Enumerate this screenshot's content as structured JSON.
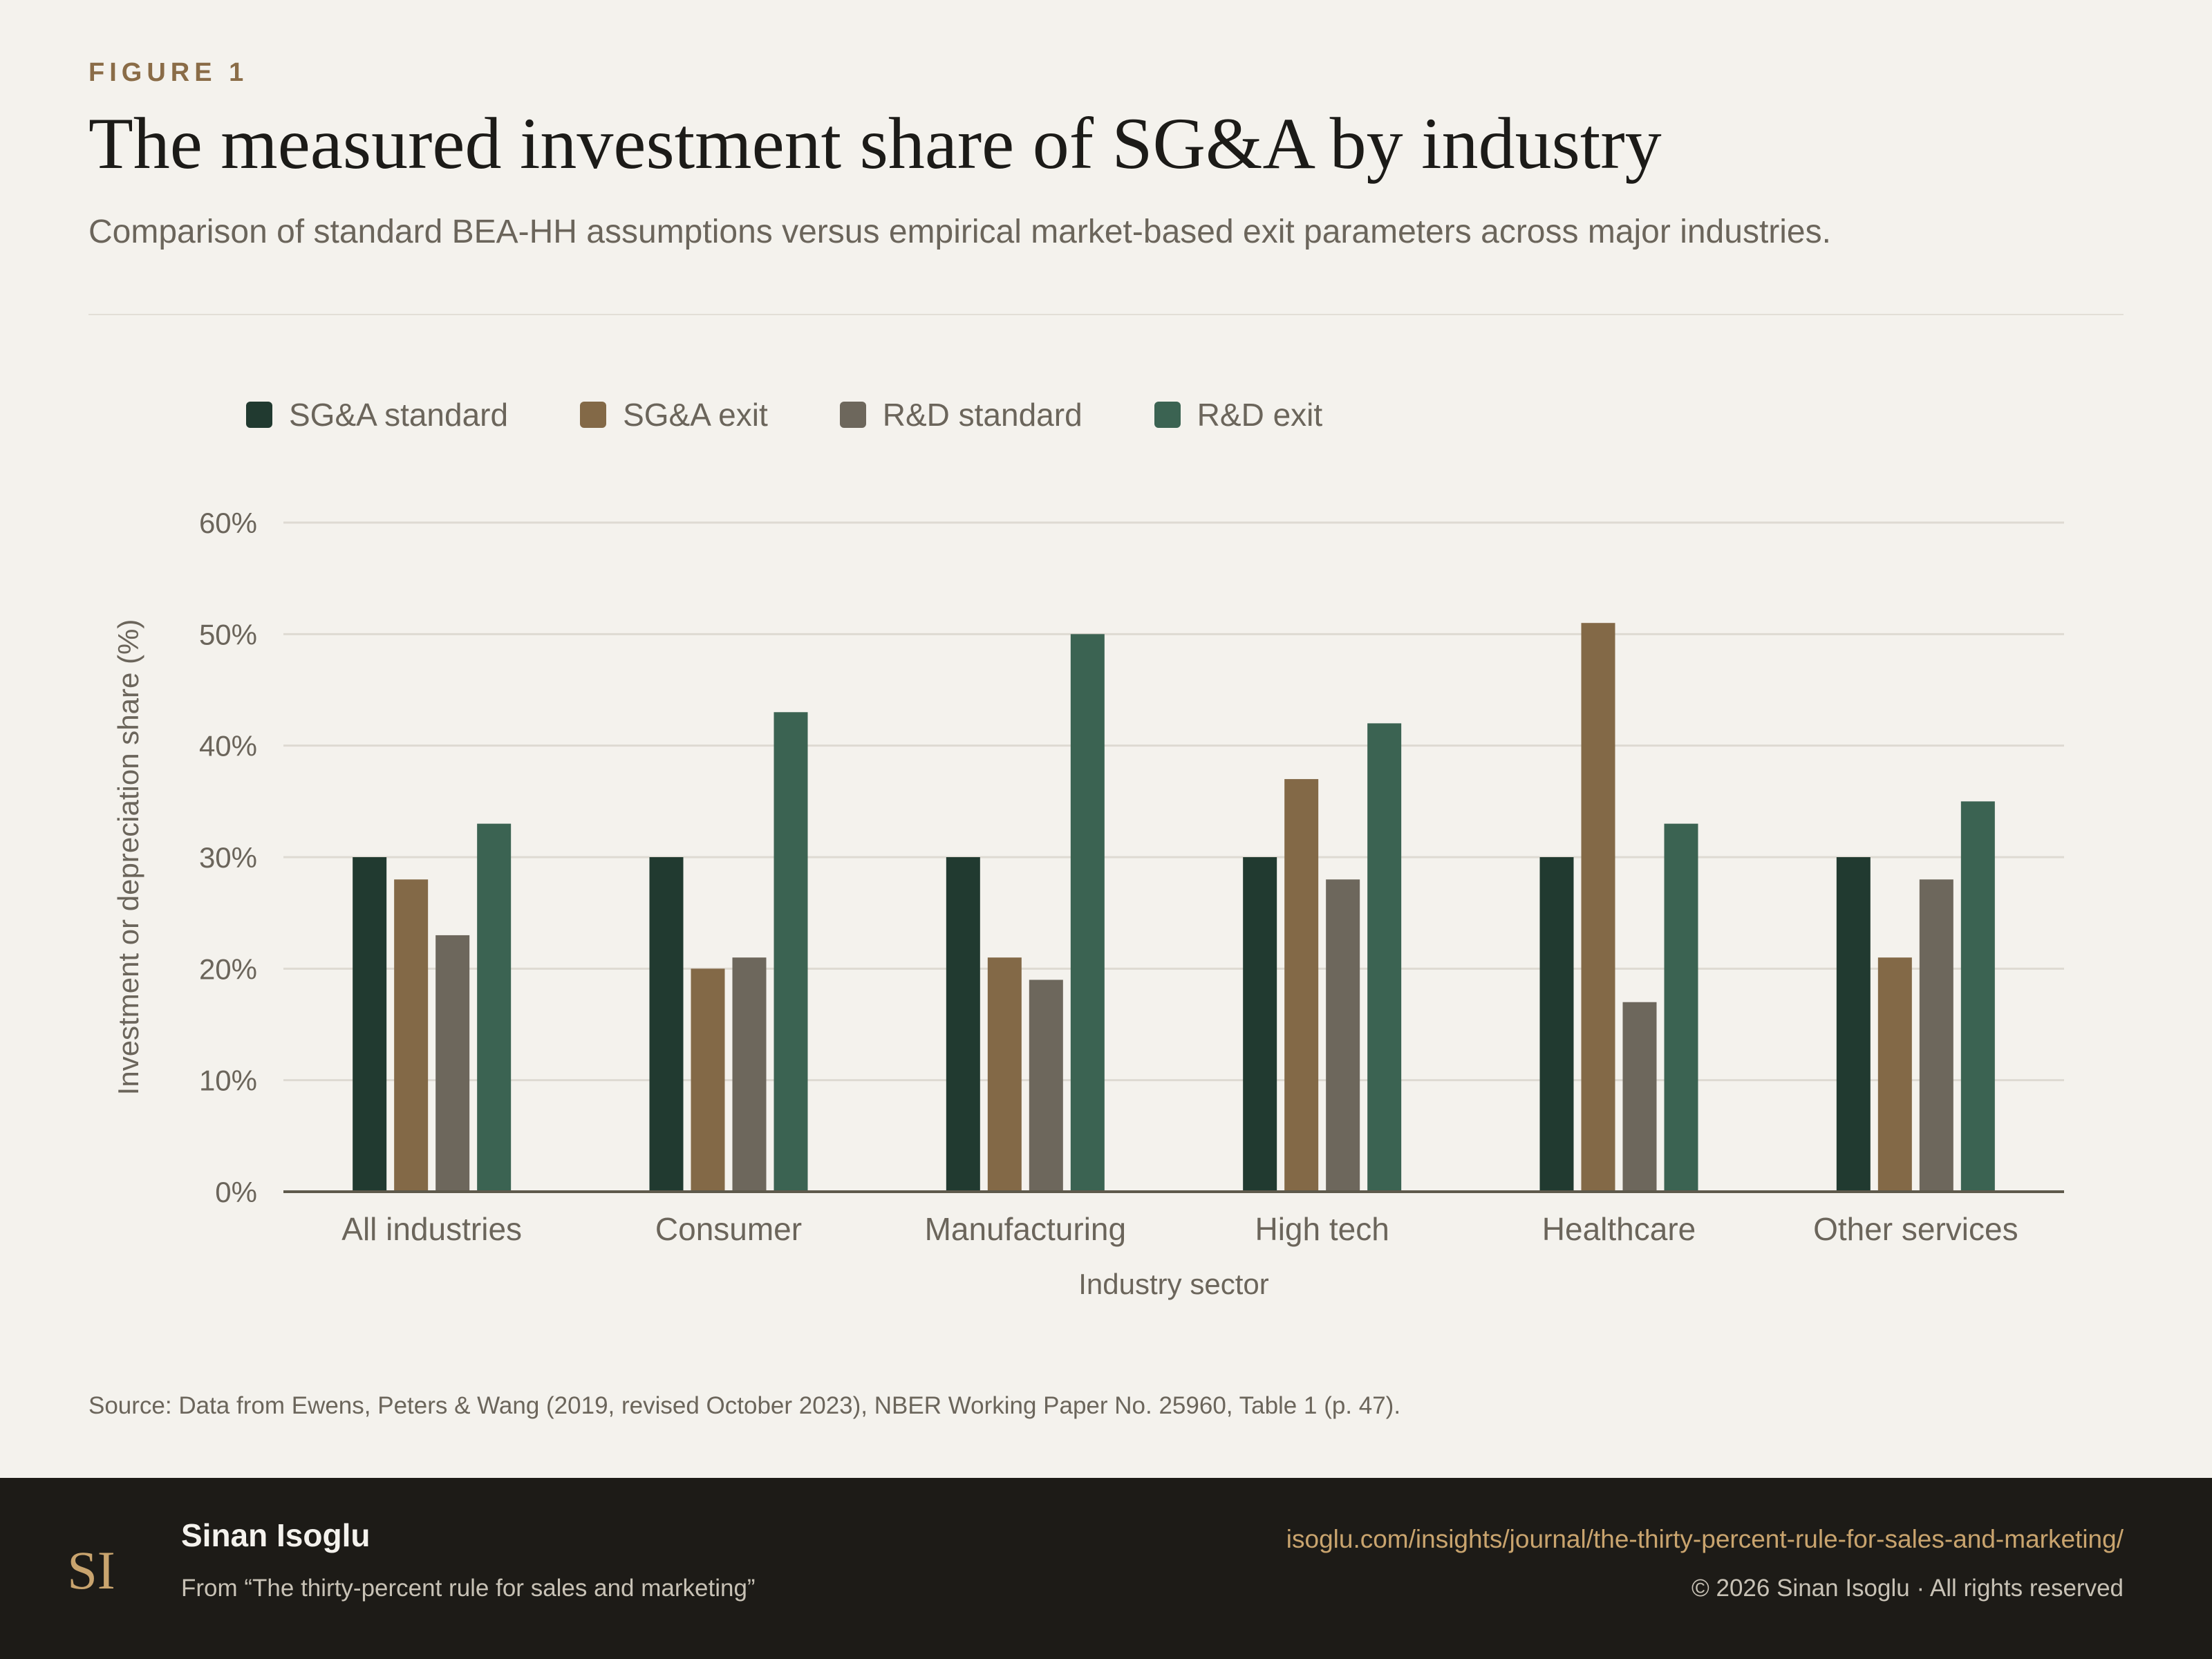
{
  "header": {
    "eyebrow": "FIGURE 1",
    "title": "The measured investment share of SG&A by industry",
    "subtitle": "Comparison of standard BEA-HH assumptions versus empirical market-based exit parameters across major industries."
  },
  "legend": [
    {
      "label": "SG&A standard",
      "color": "#213a30"
    },
    {
      "label": "SG&A exit",
      "color": "#836947"
    },
    {
      "label": "R&D standard",
      "color": "#6d675c"
    },
    {
      "label": "R&D exit",
      "color": "#3b6352"
    }
  ],
  "chart_data": {
    "type": "bar",
    "categories": [
      "All industries",
      "Consumer",
      "Manufacturing",
      "High tech",
      "Healthcare",
      "Other services"
    ],
    "series": [
      {
        "name": "SG&A standard",
        "values": [
          30,
          30,
          30,
          30,
          30,
          30
        ],
        "color": "#213a30"
      },
      {
        "name": "SG&A exit",
        "values": [
          28,
          20,
          21,
          37,
          51,
          21
        ],
        "color": "#836947"
      },
      {
        "name": "R&D standard",
        "values": [
          23,
          21,
          19,
          28,
          17,
          28
        ],
        "color": "#6d675c"
      },
      {
        "name": "R&D exit",
        "values": [
          33,
          43,
          50,
          42,
          33,
          35
        ],
        "color": "#3b6352"
      }
    ],
    "xlabel": "Industry sector",
    "ylabel": "Investment or depreciation share (%)",
    "ylim": [
      0,
      60
    ],
    "yticks": [
      0,
      10,
      20,
      30,
      40,
      50,
      60
    ],
    "ytick_format": "%",
    "grid": true,
    "legend_position": "top-left"
  },
  "source": "Source: Data from Ewens, Peters & Wang (2019, revised October 2023), NBER Working Paper No. 25960, Table 1 (p. 47).",
  "footer": {
    "logo_text": "SI",
    "author": "Sinan Isoglu",
    "from": "From “The thirty-percent rule for sales and marketing”",
    "url": "isoglu.com/insights/journal/the-thirty-percent-rule-for-sales-and-marketing/",
    "copyright": "© 2026 Sinan Isoglu · All rights reserved"
  }
}
